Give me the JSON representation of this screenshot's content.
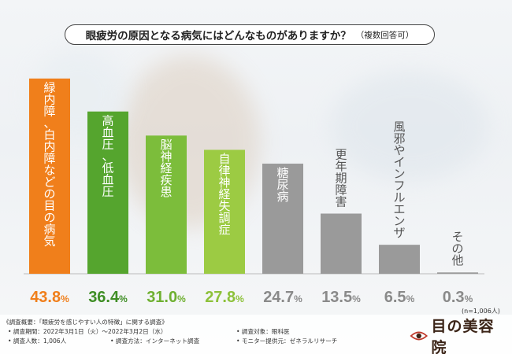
{
  "header": {
    "title": "眼疲労の原因となる病気にはどんなものがありますか？",
    "subtitle": "（複数回答可）"
  },
  "chart_data": {
    "type": "bar",
    "categories": [
      "緑内障、白内障などの目の病気",
      "高血圧、低血圧",
      "脳神経疾患",
      "自律神経失調症",
      "糖尿病",
      "更年期障害",
      "風邪やインフルエンザ",
      "その他"
    ],
    "values": [
      43.8,
      36.4,
      31.0,
      27.8,
      24.7,
      13.5,
      6.5,
      0.3
    ],
    "value_labels": [
      "43.8%",
      "36.4%",
      "31.0%",
      "27.8%",
      "24.7%",
      "13.5%",
      "6.5%",
      "0.3%"
    ],
    "unit": "%",
    "ylim": [
      0,
      45
    ],
    "grid": false,
    "legend": "none",
    "colors": {
      "bars": [
        "#f07f1b",
        "#55a52e",
        "#7cbd3b",
        "#9ccb43",
        "#9a9a9a",
        "#9a9a9a",
        "#9a9a9a",
        "#9a9a9a"
      ],
      "value_labels": [
        "#f07f1b",
        "#3f8e25",
        "#6fb031",
        "#8dc13a",
        "#8a8a8a",
        "#8a8a8a",
        "#8a8a8a",
        "#8a8a8a"
      ],
      "label_text_on_bar": "#ffffff",
      "label_text_above_bar": "#555555"
    },
    "sample_note": "(n=1,006人)"
  },
  "footer": {
    "overview": "《調査概要：「眼疲労を感じやすい人の特徴」に関する調査》",
    "period": "• 調査期間：2022年3月1日（火）〜2022年3月2日（水）",
    "respondents": "• 調査人数：1,006人",
    "method": "• 調査方法：インターネット調査",
    "target": "• 調査対象：眼科医",
    "monitor": "• モニター提供元：ゼネラルリサーチ"
  },
  "logo": {
    "text": "目の美容院",
    "icon": "eye-logo-icon"
  }
}
